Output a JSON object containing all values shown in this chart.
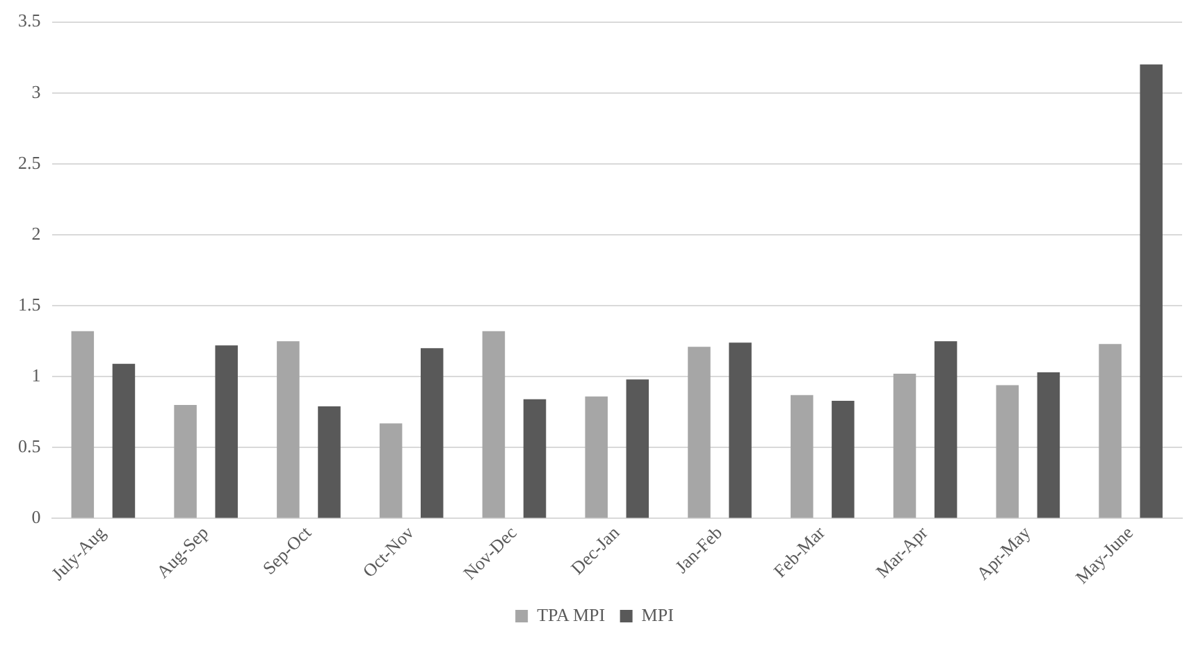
{
  "chart_data": {
    "type": "bar",
    "categories": [
      "July-Aug",
      "Aug-Sep",
      "Sep-Oct",
      "Oct-Nov",
      "Nov-Dec",
      "Dec-Jan",
      "Jan-Feb",
      "Feb-Mar",
      "Mar-Apr",
      "Apr-May",
      "May-June"
    ],
    "series": [
      {
        "name": "TPA MPI",
        "color": "#a6a6a6",
        "values": [
          1.32,
          0.8,
          1.25,
          0.67,
          1.32,
          0.86,
          1.21,
          0.87,
          1.02,
          0.94,
          1.23
        ]
      },
      {
        "name": "MPI",
        "color": "#595959",
        "values": [
          1.09,
          1.22,
          0.79,
          1.2,
          0.84,
          0.98,
          1.24,
          0.83,
          1.25,
          1.03,
          3.2
        ]
      }
    ],
    "ylim": [
      0,
      3.5
    ],
    "yticks": [
      0,
      0.5,
      1,
      1.5,
      2,
      2.5,
      3,
      3.5
    ],
    "grid": "y",
    "legend": "bottom"
  }
}
